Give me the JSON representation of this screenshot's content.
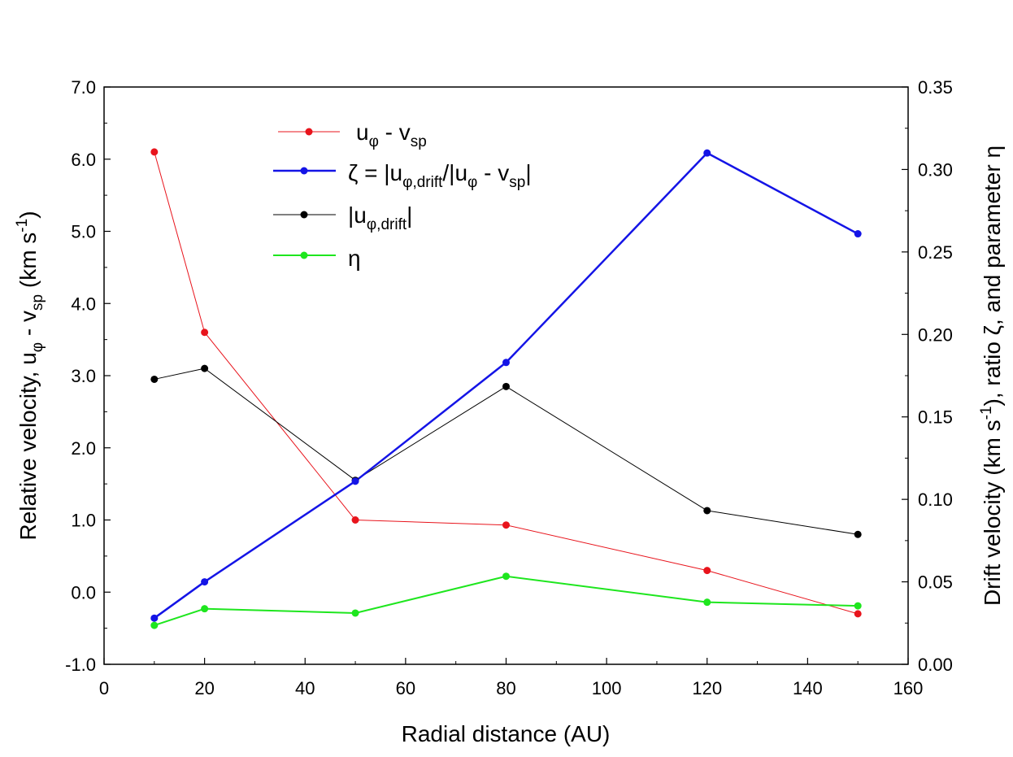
{
  "chart_data": {
    "type": "line",
    "x": [
      10,
      20,
      50,
      80,
      120,
      150
    ],
    "xlabel": "Radial distance (AU)",
    "xlim": [
      0,
      160
    ],
    "xticks": [
      "0",
      "20",
      "40",
      "60",
      "80",
      "100",
      "120",
      "140",
      "160"
    ],
    "ylabel_left": {
      "pre": "Relative velocity,  u",
      "phi": "φ",
      "mid": " - v",
      "sp": "sp",
      "post": " (km s",
      "exp": "-1",
      "close": ")"
    },
    "ylim_left": [
      -1.0,
      7.0
    ],
    "yticks_left": [
      "-1.0",
      "0.0",
      "1.0",
      "2.0",
      "3.0",
      "4.0",
      "5.0",
      "6.0",
      "7.0"
    ],
    "ylabel_right": {
      "pre": "Drift velocity (km s",
      "exp": "-1",
      "post": "), ratio ζ, and parameter η"
    },
    "ylim_right": [
      0.0,
      0.35
    ],
    "yticks_right": [
      "0.00",
      "0.05",
      "0.10",
      "0.15",
      "0.20",
      "0.25",
      "0.30",
      "0.35"
    ],
    "legend_position": "top-left",
    "series": [
      {
        "name": "u_phi - v_sp",
        "legend": {
          "base": "u",
          "phi": "φ",
          "mid": " - v",
          "sp": "sp"
        },
        "axis": "left",
        "color": "#e8141c",
        "values": [
          6.1,
          3.6,
          1.0,
          0.93,
          0.3,
          -0.3
        ]
      },
      {
        "name": "zeta = |u_phi,drift|/|u_phi - v_sp|",
        "legend": {
          "zeta": "ζ",
          "eq": " = |u",
          "sub": "φ,drift",
          "slash": "/|u",
          "phi": "φ",
          "mid": " - v",
          "sp": "sp",
          "end": "|"
        },
        "axis": "right",
        "color": "#1414e6",
        "values": [
          0.028,
          0.05,
          0.111,
          0.183,
          0.31,
          0.261
        ]
      },
      {
        "name": "|u_phi,drift|",
        "legend": {
          "open": "|u",
          "sub": "φ,drift",
          "close": "|"
        },
        "axis": "left",
        "color": "#000000",
        "values": [
          2.95,
          3.1,
          1.55,
          2.85,
          1.13,
          0.8
        ]
      },
      {
        "name": "eta",
        "legend": {
          "eta": "η"
        },
        "axis": "left",
        "color": "#1ee61e",
        "values": [
          -0.46,
          -0.23,
          -0.29,
          0.22,
          -0.14,
          -0.19
        ]
      }
    ]
  }
}
